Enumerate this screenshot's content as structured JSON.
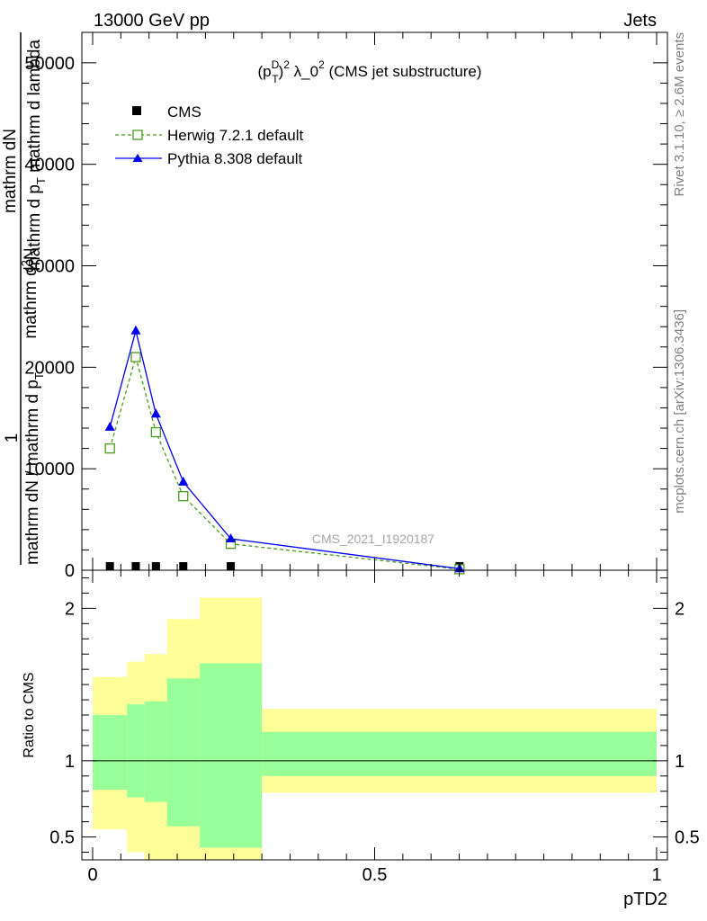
{
  "header": {
    "left": "13000 GeV pp",
    "right": "Jets"
  },
  "side_labels": {
    "rivet": "Rivet 3.1.10, ≥ 2.6M events",
    "mcplots": "mcplots.cern.ch [arXiv:1306.3436]"
  },
  "chart_data": [
    {
      "type": "line",
      "title_main": "(p",
      "title_sup_D": "D",
      "title_sub_T": "T",
      "title_rest_1": ")",
      "title_sup_2a": "2",
      "title_rest_2": " λ_0",
      "title_sup_2b": "2",
      "title_rest_3": " (CMS jet substructure)",
      "watermark": "CMS_2021_I1920187",
      "ylabel": {
        "one": "1",
        "frac1_num": "mathrm dN",
        "frac1_den": "mathrm dN / mathrm d p",
        "frac1_den_sub": "T",
        "frac2_num_a": "mathrm d",
        "frac2_num_sup": "2",
        "frac2_num_b": "N",
        "frac2_den_a": "mathrm d p",
        "frac2_den_sub": "T",
        "frac2_den_b": " mathrm d lambda"
      },
      "ylim": [
        0,
        53000
      ],
      "yticks": [
        0,
        10000,
        20000,
        30000,
        40000,
        50000
      ],
      "ytick_labels": [
        "0",
        "10000",
        "20000",
        "30000",
        "40000",
        "50000"
      ],
      "legend": [
        {
          "name": "CMS"
        },
        {
          "name": "Herwig 7.2.1 default"
        },
        {
          "name": "Pythia 8.308 default"
        }
      ],
      "series": [
        {
          "name": "CMS",
          "x": [
            0.0306,
            0.0765,
            0.1122,
            0.1607,
            0.2449,
            0.6505
          ],
          "y": [
            0,
            0,
            0,
            0,
            0,
            0
          ],
          "color": "#000000",
          "marker": "square-filled"
        },
        {
          "name": "Herwig 7.2.1 default",
          "x": [
            0.0306,
            0.0765,
            0.1122,
            0.1607,
            0.2449,
            0.6505
          ],
          "y": [
            12000,
            21000,
            13600,
            7300,
            2600,
            100
          ],
          "color": "#4a9a1c",
          "marker": "square-open",
          "dash": true
        },
        {
          "name": "Pythia 8.308 default",
          "x": [
            0.0306,
            0.0765,
            0.1122,
            0.1607,
            0.2449,
            0.6505
          ],
          "y": [
            14100,
            23600,
            15400,
            8700,
            3100,
            150
          ],
          "color": "#0000ee",
          "marker": "triangle-filled"
        }
      ]
    },
    {
      "type": "area",
      "ylabel": "Ratio to CMS",
      "xlabel": "pTD2",
      "xlim": [
        -0.02,
        1.0
      ],
      "ylim": [
        0.35,
        2.25
      ],
      "xticks": [
        0,
        0.5,
        1
      ],
      "xtick_labels": [
        "0",
        "0.5",
        "1"
      ],
      "yticks": [
        0.5,
        1,
        2
      ],
      "ytick_labels": [
        "0.5",
        "1",
        "2"
      ],
      "reference_line": 1,
      "bands": [
        {
          "x0": 0.0,
          "x1": 0.061,
          "yellow": [
            0.55,
            1.55
          ],
          "green": [
            0.81,
            1.3
          ]
        },
        {
          "x0": 0.061,
          "x1": 0.092,
          "yellow": [
            0.4,
            1.65
          ],
          "green": [
            0.76,
            1.37
          ]
        },
        {
          "x0": 0.092,
          "x1": 0.132,
          "yellow": [
            0.35,
            1.7
          ],
          "green": [
            0.73,
            1.39
          ]
        },
        {
          "x0": 0.132,
          "x1": 0.19,
          "yellow": [
            0.35,
            1.93
          ],
          "green": [
            0.57,
            1.54
          ]
        },
        {
          "x0": 0.19,
          "x1": 0.3,
          "yellow": [
            0.35,
            2.07
          ],
          "green": [
            0.43,
            1.64
          ]
        },
        {
          "x0": 0.3,
          "x1": 1.0,
          "yellow": [
            0.79,
            1.34
          ],
          "green": [
            0.9,
            1.19
          ]
        }
      ],
      "colors": {
        "yellow": "#ffff99",
        "green": "#99ff99"
      }
    }
  ]
}
